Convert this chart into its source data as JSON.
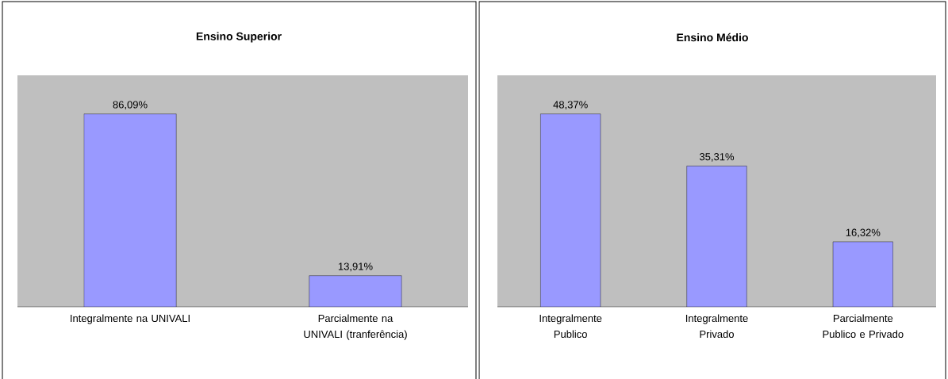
{
  "chart_data": [
    {
      "type": "bar",
      "title": "Ensino Superior",
      "categories": [
        "Integralmente na UNIVALI",
        "Parcialmente na UNIVALI (tranferência)"
      ],
      "values": [
        86.09,
        13.91
      ],
      "value_labels": [
        "86,09%",
        "13,91%"
      ],
      "color": "#9999ff"
    },
    {
      "type": "bar",
      "title": "Ensino Médio",
      "categories": [
        "Integralmente Publico",
        "Integralmente Privado",
        "Parcialmente Publico e Privado"
      ],
      "values": [
        48.37,
        35.31,
        16.32
      ],
      "value_labels": [
        "48,37%",
        "35,31%",
        "16,32%"
      ],
      "color": "#9999ff"
    }
  ]
}
